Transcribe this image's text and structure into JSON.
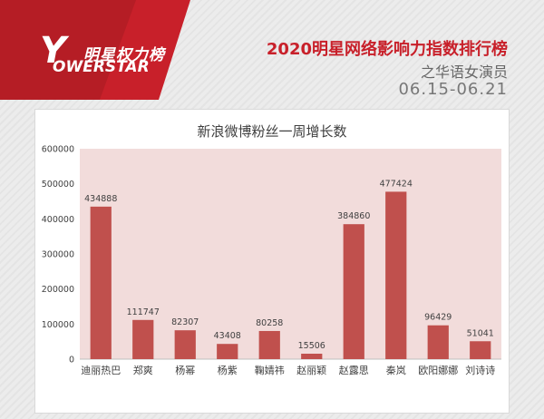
{
  "header": {
    "logo_cn": "明星权力榜",
    "logo_en": "OWERSTAR",
    "logo_y": "Y",
    "title": "2020明星网络影响力指数排行榜",
    "subtitle": "之华语女演员",
    "date_range": "06.15-06.21"
  },
  "colors": {
    "brand_red": "#c8202a",
    "bar": "#c0504d",
    "plot_bg": "#f2dcdb"
  },
  "chart_data": {
    "type": "bar",
    "title": "新浪微博粉丝一周增长数",
    "categories": [
      "迪丽热巴",
      "郑爽",
      "杨幂",
      "杨紫",
      "鞠婧祎",
      "赵丽颖",
      "赵露思",
      "秦岚",
      "欧阳娜娜",
      "刘诗诗"
    ],
    "values": [
      434888,
      111747,
      82307,
      43408,
      80258,
      15506,
      384860,
      477424,
      96429,
      51041
    ],
    "ylim": [
      0,
      600000
    ],
    "yticks": [
      "0",
      "100000",
      "200000",
      "300000",
      "400000",
      "500000",
      "600000"
    ],
    "xlabel": "",
    "ylabel": "",
    "grid": false,
    "legend": "none"
  }
}
